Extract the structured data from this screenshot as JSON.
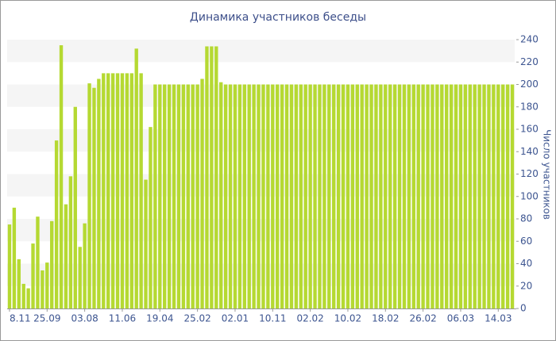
{
  "chart_data": {
    "type": "bar",
    "title": "Динамика участников беседы",
    "y_label": "Число участников",
    "categories": [
      "8.11",
      null,
      null,
      null,
      null,
      null,
      null,
      null,
      "25.09",
      null,
      null,
      null,
      null,
      null,
      null,
      null,
      "03.08",
      null,
      null,
      null,
      null,
      null,
      null,
      null,
      "11.06",
      null,
      null,
      null,
      null,
      null,
      null,
      null,
      "19.04",
      null,
      null,
      null,
      null,
      null,
      null,
      null,
      "25.02",
      null,
      null,
      null,
      null,
      null,
      null,
      null,
      "02.01",
      null,
      null,
      null,
      null,
      null,
      null,
      null,
      "10.11",
      null,
      null,
      null,
      null,
      null,
      null,
      null,
      "02.02",
      null,
      null,
      null,
      null,
      null,
      null,
      null,
      "10.02",
      null,
      null,
      null,
      null,
      null,
      null,
      null,
      "18.02",
      null,
      null,
      null,
      null,
      null,
      null,
      null,
      "26.02",
      null,
      null,
      null,
      null,
      null,
      null,
      null,
      "06.03",
      null,
      null,
      null,
      null,
      null,
      null,
      null,
      "14.03",
      null,
      null,
      null
    ],
    "values": [
      75,
      90,
      44,
      22,
      18,
      58,
      82,
      34,
      41,
      78,
      150,
      235,
      93,
      118,
      180,
      55,
      76,
      201,
      197,
      205,
      210,
      210,
      210,
      210,
      210,
      210,
      210,
      232,
      210,
      115,
      162,
      200,
      200,
      200,
      200,
      200,
      200,
      200,
      200,
      200,
      200,
      205,
      234,
      234,
      234,
      202,
      200,
      200,
      200,
      200,
      200,
      200,
      200,
      200,
      200,
      200,
      200,
      200,
      200,
      200,
      200,
      200,
      200,
      200,
      200,
      200,
      200,
      200,
      200,
      200,
      200,
      200,
      200,
      200,
      200,
      200,
      200,
      200,
      200,
      200,
      200,
      200,
      200,
      200,
      200,
      200,
      200,
      200,
      200,
      200,
      200,
      200,
      200,
      200,
      200,
      200,
      200,
      200,
      200,
      200,
      200,
      200,
      200,
      200,
      200,
      200,
      200,
      200
    ],
    "color": "#b5d932",
    "ylim": [
      0,
      240
    ],
    "yticks": [
      0,
      20,
      40,
      60,
      80,
      100,
      120,
      140,
      160,
      180,
      200,
      220,
      240
    ],
    "grid": true,
    "y_axis_side": "right"
  }
}
